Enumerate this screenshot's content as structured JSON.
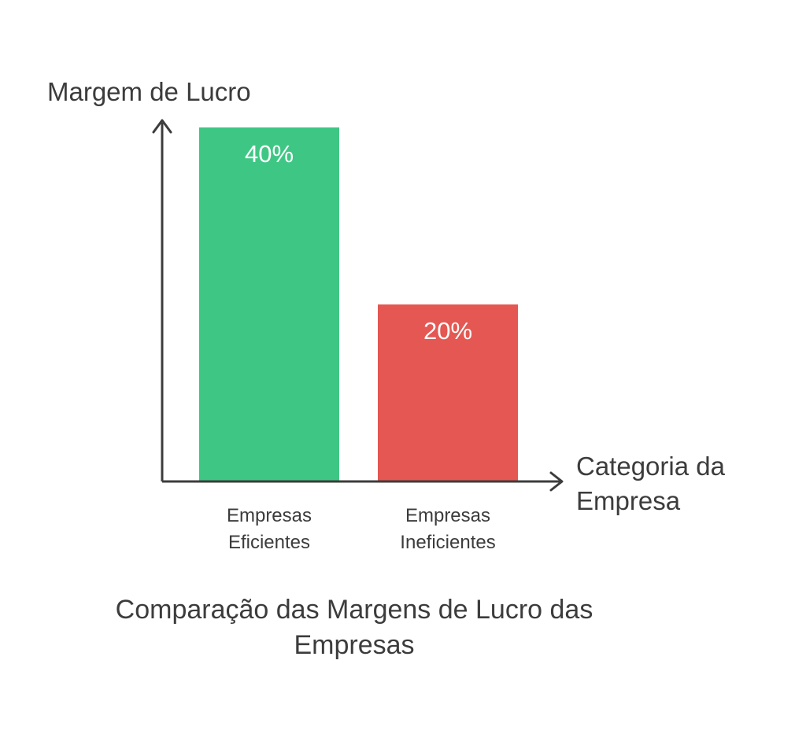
{
  "chart_data": {
    "type": "bar",
    "categories": [
      "Empresas Eficientes",
      "Empresas Ineficientes"
    ],
    "category_lines": [
      [
        "Empresas",
        "Eficientes"
      ],
      [
        "Empresas",
        "Ineficientes"
      ]
    ],
    "values": [
      40,
      20
    ],
    "value_labels": [
      "40%",
      "20%"
    ],
    "colors": [
      "#3ec784",
      "#e45752"
    ],
    "ylabel": "Margem de Lucro",
    "xlabel_lines": [
      "Categoria da",
      "Empresa"
    ],
    "title_lines": [
      "Comparação das Margens de Lucro das",
      "Empresas"
    ],
    "ylim": [
      0,
      40
    ],
    "grid": false,
    "legend": "none",
    "axis_color": "#3c3c3c",
    "text_color": "#3c3c3c"
  }
}
